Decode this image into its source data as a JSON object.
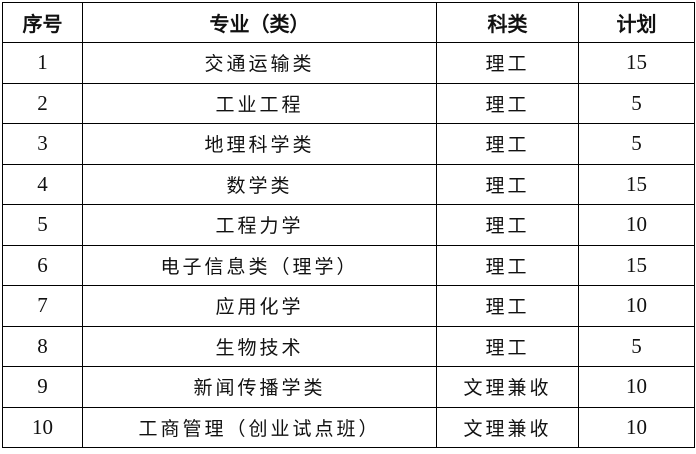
{
  "table": {
    "headers": [
      "序号",
      "专业（类）",
      "科类",
      "计划"
    ],
    "rows": [
      {
        "no": "1",
        "major": "交通运输类",
        "category": "理工",
        "plan": "15"
      },
      {
        "no": "2",
        "major": "工业工程",
        "category": "理工",
        "plan": "5"
      },
      {
        "no": "3",
        "major": "地理科学类",
        "category": "理工",
        "plan": "5"
      },
      {
        "no": "4",
        "major": "数学类",
        "category": "理工",
        "plan": "15"
      },
      {
        "no": "5",
        "major": "工程力学",
        "category": "理工",
        "plan": "10"
      },
      {
        "no": "6",
        "major": "电子信息类（理学）",
        "category": "理工",
        "plan": "15"
      },
      {
        "no": "7",
        "major": "应用化学",
        "category": "理工",
        "plan": "10"
      },
      {
        "no": "8",
        "major": "生物技术",
        "category": "理工",
        "plan": "5"
      },
      {
        "no": "9",
        "major": "新闻传播学类",
        "category": "文理兼收",
        "plan": "10"
      },
      {
        "no": "10",
        "major": "工商管理（创业试点班）",
        "category": "文理兼收",
        "plan": "10"
      }
    ]
  }
}
